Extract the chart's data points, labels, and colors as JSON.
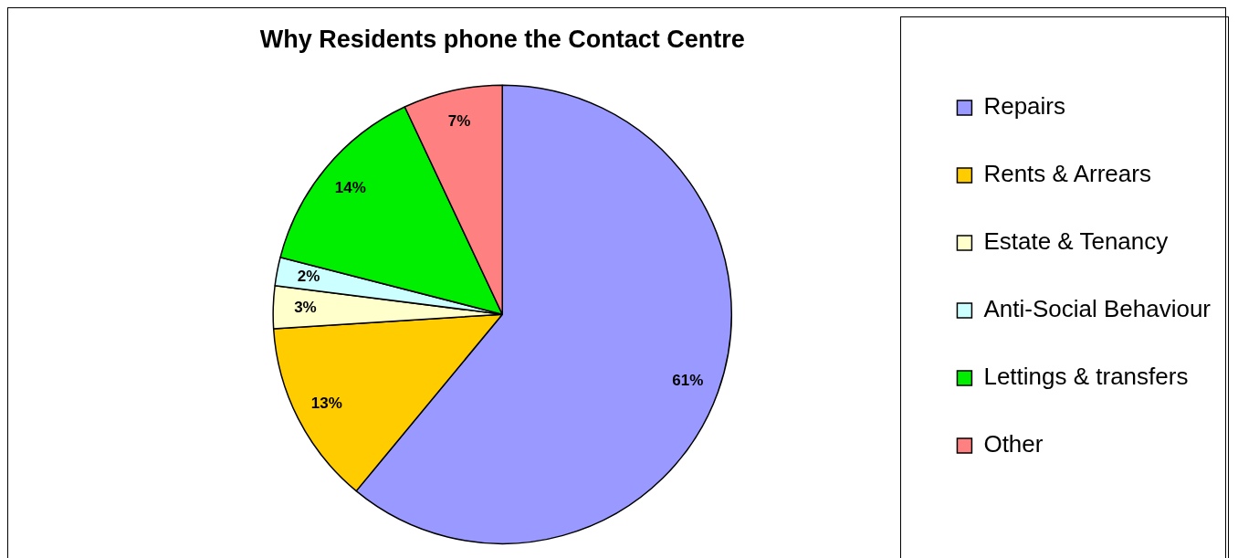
{
  "chart_data": {
    "type": "pie",
    "title": "Why Residents phone the Contact Centre",
    "categories": [
      "Repairs",
      "Rents & Arrears",
      "Estate & Tenancy",
      "Anti-Social Behaviour",
      "Lettings & transfers",
      "Other"
    ],
    "values": [
      61,
      13,
      3,
      2,
      14,
      7
    ],
    "colors": [
      "#9999ff",
      "#ffcc00",
      "#ffffcc",
      "#ccffff",
      "#00ee00",
      "#ff8080"
    ],
    "value_labels": [
      "61%",
      "13%",
      "3%",
      "2%",
      "14%",
      "7%"
    ],
    "legend": "right"
  }
}
